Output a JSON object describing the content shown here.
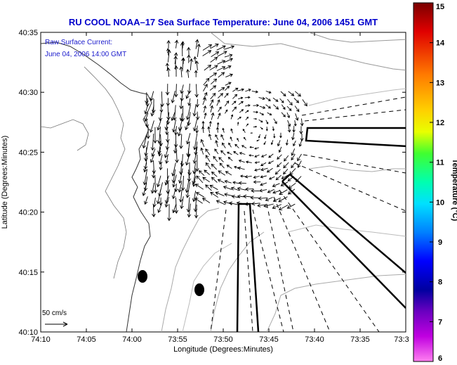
{
  "chart_data": {
    "type": "scatter",
    "title": "RU COOL  NOAA–17  Sea Surface Temperature:  June 04, 2006 1451 GMT",
    "annotation_line1": "Raw Surface Current:",
    "annotation_line2": "June 04, 2006 14:00 GMT",
    "xlabel": "Longitude (Degrees:Minutes)",
    "ylabel": "Latitude (Degrees:Minutes)",
    "x_ticks": [
      "74:10",
      "74:05",
      "74:00",
      "73:55",
      "73:50",
      "73:45",
      "73:40",
      "73:35",
      "73:3"
    ],
    "y_ticks": [
      "40:35",
      "40:30",
      "40:25",
      "40:20",
      "40:15",
      "40:10"
    ],
    "scale_label": "50 cm/s",
    "colorbar": {
      "label": "Temperature (°C)",
      "min": 6,
      "max": 15,
      "ticks": [
        "15",
        "14",
        "13",
        "12",
        "11",
        "10",
        "9",
        "8",
        "7",
        "6"
      ],
      "colors": [
        "#8b0000",
        "#ff0000",
        "#ff8c00",
        "#ffff00",
        "#00ff00",
        "#00ffff",
        "#0000ff",
        "#9400d3",
        "#ff00ff"
      ]
    }
  }
}
